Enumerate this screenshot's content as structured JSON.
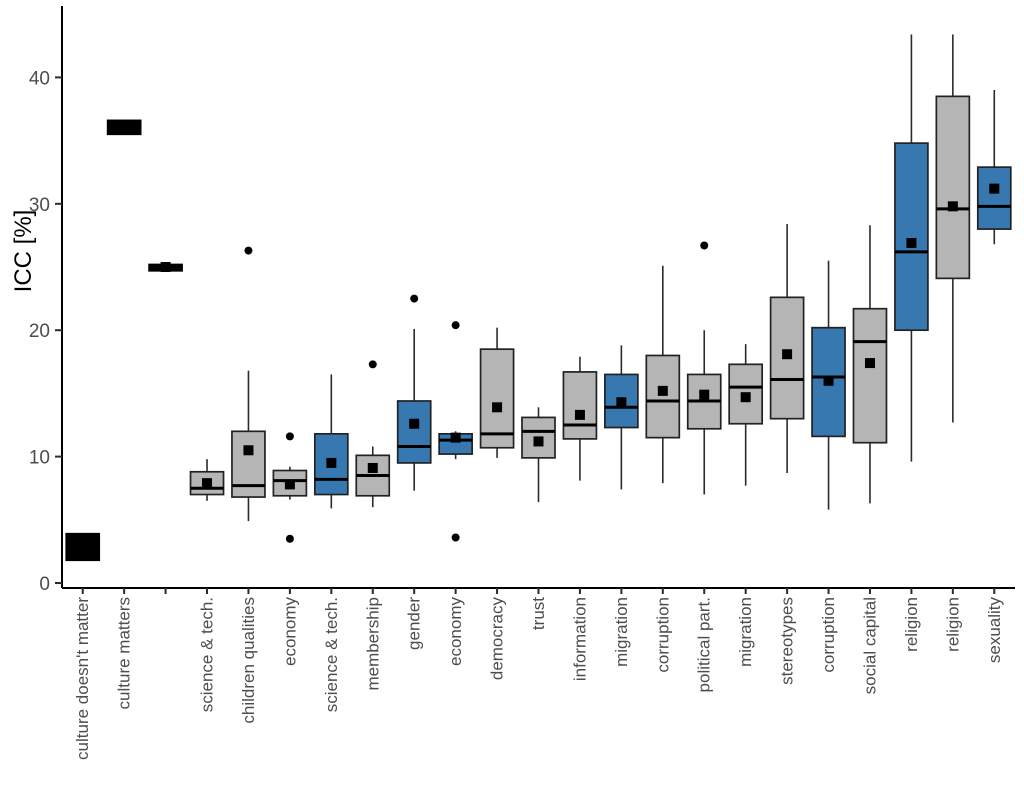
{
  "chart_data": {
    "type": "boxplot",
    "title": "",
    "xlabel": "",
    "ylabel": "ICC [%]",
    "yticks": [
      0,
      10,
      20,
      30,
      40
    ],
    "ylim": [
      0,
      45.6
    ],
    "grid": false,
    "legend": null,
    "colors": {
      "box_gray": "#b5b5b5",
      "box_blue": "#3878b0",
      "box_black": "#000000",
      "box_stroke": "#222222",
      "median": "#000000",
      "whisker": "#2b2b2b",
      "axis": "#000000",
      "tick_label": "#4d4d4d",
      "axis_title": "#000000",
      "point": "#000000"
    },
    "series": [
      {
        "label": "culture doesn't matter",
        "color": "black",
        "low": null,
        "q1": 1.8,
        "median": 2.85,
        "q3": 3.9,
        "high": null,
        "mean": null,
        "outliers": []
      },
      {
        "label": "culture matters",
        "color": "black",
        "low": null,
        "q1": 35.5,
        "median": 36.0,
        "q3": 36.6,
        "high": null,
        "mean": null,
        "outliers": []
      },
      {
        "label": "",
        "color": "black",
        "low": null,
        "q1": 24.7,
        "median": 24.95,
        "q3": 25.2,
        "high": null,
        "mean": 25.0,
        "outliers": []
      },
      {
        "label": "science & tech.",
        "color": "gray",
        "low": 6.5,
        "q1": 7.0,
        "median": 7.5,
        "q3": 8.8,
        "high": 9.8,
        "mean": 7.9,
        "outliers": []
      },
      {
        "label": "children qualities",
        "color": "gray",
        "low": 4.9,
        "q1": 6.8,
        "median": 7.7,
        "q3": 12.0,
        "high": 16.8,
        "mean": 10.5,
        "outliers": [
          26.3
        ]
      },
      {
        "label": "economy",
        "color": "gray",
        "low": 6.6,
        "q1": 6.9,
        "median": 8.1,
        "q3": 8.9,
        "high": 9.2,
        "mean": 7.8,
        "outliers": [
          11.6,
          3.5
        ]
      },
      {
        "label": "science & tech.",
        "color": "blue",
        "low": 5.9,
        "q1": 7.0,
        "median": 8.2,
        "q3": 11.8,
        "high": 16.5,
        "mean": 9.5,
        "outliers": []
      },
      {
        "label": "membership",
        "color": "gray",
        "low": 6.0,
        "q1": 6.9,
        "median": 8.5,
        "q3": 10.1,
        "high": 10.8,
        "mean": 9.1,
        "outliers": [
          17.3
        ]
      },
      {
        "label": "gender",
        "color": "blue",
        "low": 7.3,
        "q1": 9.5,
        "median": 10.8,
        "q3": 14.4,
        "high": 20.1,
        "mean": 12.6,
        "outliers": [
          22.5
        ]
      },
      {
        "label": "economy",
        "color": "blue",
        "low": 9.8,
        "q1": 10.2,
        "median": 11.3,
        "q3": 11.8,
        "high": 12.0,
        "mean": 11.5,
        "outliers": [
          20.4,
          3.6
        ]
      },
      {
        "label": "democracy",
        "color": "gray",
        "low": 9.9,
        "q1": 10.7,
        "median": 11.8,
        "q3": 18.5,
        "high": 20.2,
        "mean": 13.9,
        "outliers": []
      },
      {
        "label": "trust",
        "color": "gray",
        "low": 6.4,
        "q1": 9.9,
        "median": 12.0,
        "q3": 13.1,
        "high": 13.9,
        "mean": 11.2,
        "outliers": []
      },
      {
        "label": "information",
        "color": "gray",
        "low": 8.1,
        "q1": 11.4,
        "median": 12.5,
        "q3": 16.7,
        "high": 17.9,
        "mean": 13.3,
        "outliers": []
      },
      {
        "label": "migration",
        "color": "blue",
        "low": 7.4,
        "q1": 12.3,
        "median": 13.9,
        "q3": 16.5,
        "high": 18.8,
        "mean": 14.3,
        "outliers": []
      },
      {
        "label": "corruption",
        "color": "gray",
        "low": 7.9,
        "q1": 11.5,
        "median": 14.4,
        "q3": 18.0,
        "high": 25.1,
        "mean": 15.2,
        "outliers": []
      },
      {
        "label": "political part.",
        "color": "gray",
        "low": 7.0,
        "q1": 12.2,
        "median": 14.4,
        "q3": 16.5,
        "high": 20.0,
        "mean": 14.9,
        "outliers": [
          26.7
        ]
      },
      {
        "label": "migration",
        "color": "gray",
        "low": 7.7,
        "q1": 12.6,
        "median": 15.5,
        "q3": 17.3,
        "high": 18.9,
        "mean": 14.7,
        "outliers": []
      },
      {
        "label": "stereotypes",
        "color": "gray",
        "low": 8.7,
        "q1": 13.0,
        "median": 16.1,
        "q3": 22.6,
        "high": 28.4,
        "mean": 18.1,
        "outliers": []
      },
      {
        "label": "corruption",
        "color": "blue",
        "low": 5.8,
        "q1": 11.6,
        "median": 16.3,
        "q3": 20.2,
        "high": 25.5,
        "mean": 16.0,
        "outliers": []
      },
      {
        "label": "social capital",
        "color": "gray",
        "low": 6.3,
        "q1": 11.1,
        "median": 19.1,
        "q3": 21.7,
        "high": 28.3,
        "mean": 17.4,
        "outliers": []
      },
      {
        "label": "religion",
        "color": "blue",
        "low": 9.6,
        "q1": 20.0,
        "median": 26.2,
        "q3": 34.8,
        "high": 43.4,
        "mean": 26.9,
        "outliers": []
      },
      {
        "label": "religion",
        "color": "gray",
        "low": 12.7,
        "q1": 24.1,
        "median": 29.6,
        "q3": 38.5,
        "high": 43.4,
        "mean": 29.8,
        "outliers": []
      },
      {
        "label": "sexuality",
        "color": "blue",
        "low": 26.8,
        "q1": 28.0,
        "median": 29.8,
        "q3": 32.9,
        "high": 39.0,
        "mean": 31.2,
        "outliers": []
      }
    ]
  }
}
